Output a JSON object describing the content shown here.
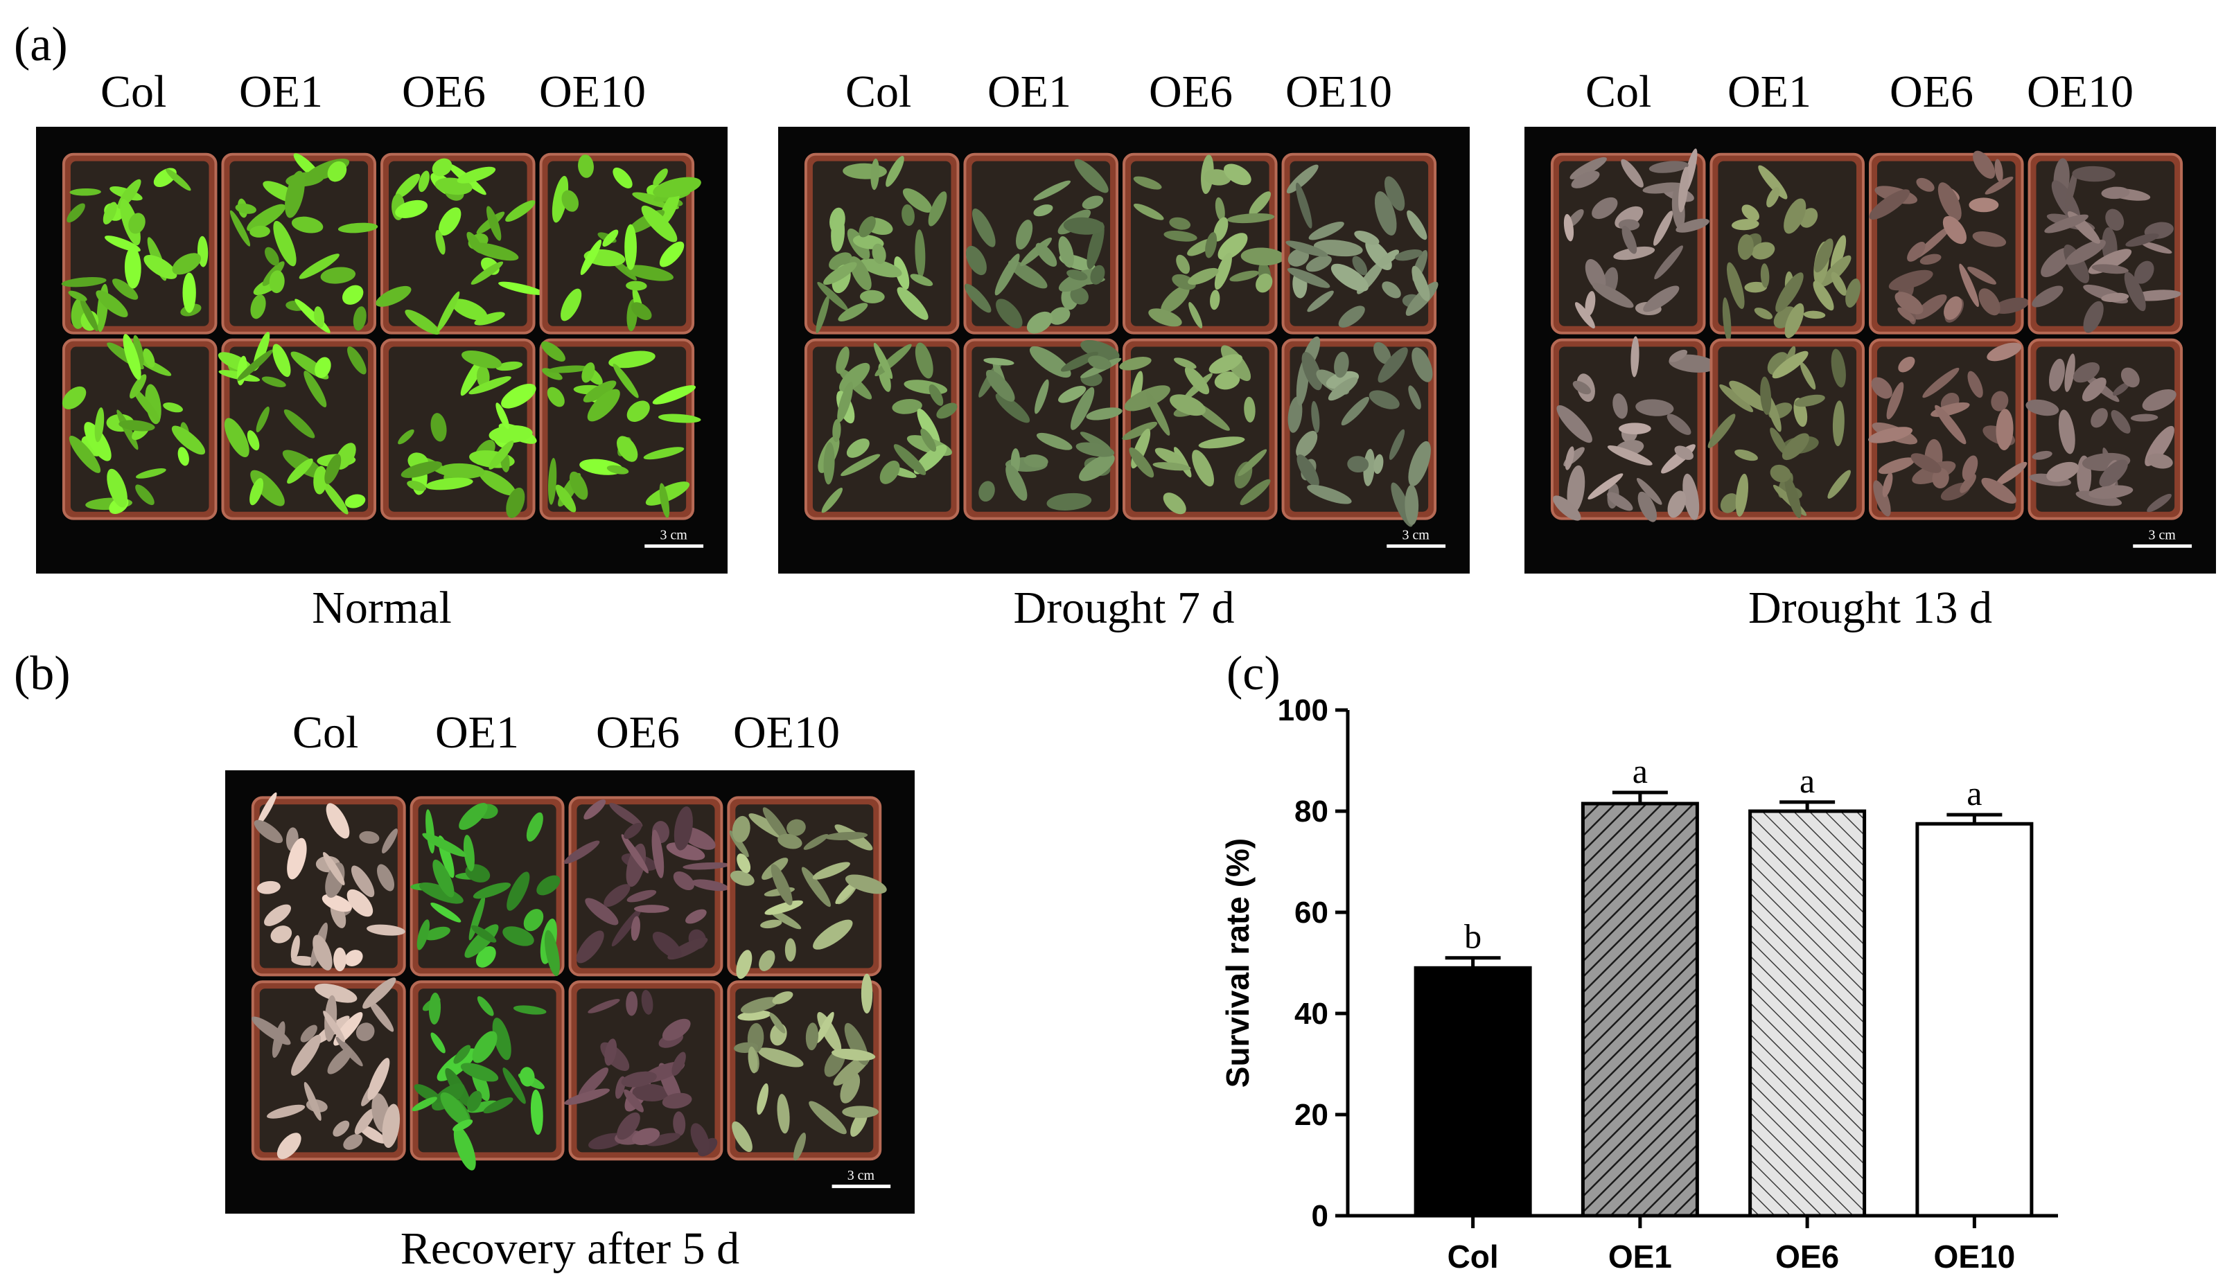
{
  "figure": {
    "panel_a_label": "(a)",
    "panel_b_label": "(b)",
    "panel_c_label": "(c)",
    "genotypes": [
      "Col",
      "OE1",
      "OE6",
      "OE10"
    ],
    "photos": [
      {
        "caption": "Normal",
        "scale_bar": "3 cm",
        "colors": [
          "#6fcf2a",
          "#6fcf2a",
          "#6fcf2a",
          "#6fcf2a"
        ]
      },
      {
        "caption": "Drought 7 d",
        "scale_bar": "3 cm",
        "colors": [
          "#7fa860",
          "#6f8c5c",
          "#7c9a5e",
          "#7a8a6e"
        ]
      },
      {
        "caption": "Drought 13 d",
        "scale_bar": "3 cm",
        "colors": [
          "#9a8a86",
          "#7d8a5a",
          "#8a6a64",
          "#7e6c6a"
        ]
      },
      {
        "caption": "Recovery after 5 d",
        "scale_bar": "3 cm",
        "colors": [
          "#c7b2a8",
          "#3fae2f",
          "#6a4a55",
          "#9aaa78"
        ]
      }
    ]
  },
  "chart_data": {
    "type": "bar",
    "categories": [
      "Col",
      "OE1",
      "OE6",
      "OE10"
    ],
    "values": [
      49,
      81.5,
      80,
      77.5
    ],
    "errors": [
      2,
      2.2,
      1.8,
      1.8
    ],
    "significance": [
      "b",
      "a",
      "a",
      "a"
    ],
    "ylabel": "Survival rate (%)",
    "ylim": [
      0,
      100
    ],
    "yticks": [
      0,
      20,
      40,
      60,
      80,
      100
    ],
    "bar_styles": [
      {
        "fill": "#000000",
        "hatch": "none"
      },
      {
        "fill": "#9a9a9a",
        "hatch": "forward-dense"
      },
      {
        "fill": "#dcdcdc",
        "hatch": "backward"
      },
      {
        "fill": "#ffffff",
        "hatch": "none"
      }
    ],
    "grid": false
  }
}
